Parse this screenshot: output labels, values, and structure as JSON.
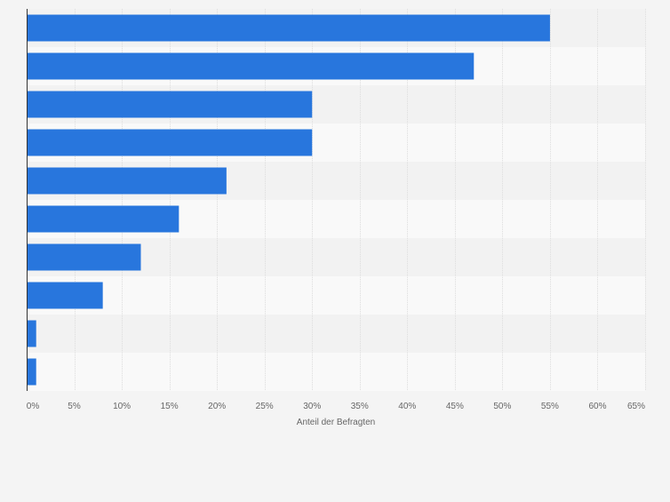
{
  "chart_data": {
    "type": "bar",
    "orientation": "horizontal",
    "title": "",
    "xlabel": "Anteil der Befragten",
    "ylabel": "",
    "categories": [
      "",
      "",
      "",
      "",
      "",
      "",
      "",
      "",
      "",
      ""
    ],
    "values": [
      55,
      47,
      30,
      30,
      21,
      16,
      12,
      8,
      1,
      1
    ],
    "unit": "%",
    "xlim": [
      0,
      65
    ],
    "tick_values": [
      0,
      5,
      10,
      15,
      20,
      25,
      30,
      35,
      40,
      45,
      50,
      55,
      60,
      65
    ],
    "tick_labels": [
      "0%",
      "5%",
      "10%",
      "15%",
      "20%",
      "25%",
      "30%",
      "35%",
      "40%",
      "45%",
      "50%",
      "55%",
      "60%",
      "65%"
    ],
    "grid": true,
    "legend": "none"
  },
  "colors": {
    "bar": "#2876dd",
    "page_background": "#f4f4f4",
    "plot_band_dark": "#f2f2f2",
    "plot_band_light": "#f9f9f9",
    "gridline": "#dddddd",
    "axis_line": "#333333",
    "tick_text": "#666666"
  }
}
